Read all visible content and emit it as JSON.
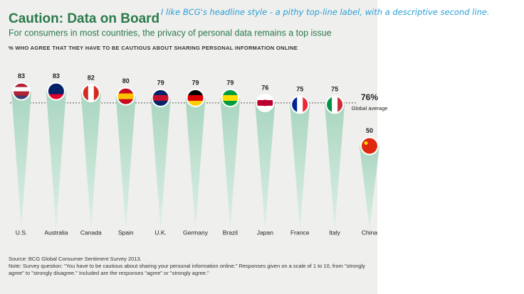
{
  "chart_data": {
    "type": "cone",
    "title": "Caution: Data on Board",
    "subtitle": "For consumers in most countries, the privacy of personal data remains a top issue",
    "y_label": "% WHO AGREE THAT THEY HAVE TO BE CAUTIOUS ABOUT SHARING PERSONAL INFORMATION ONLINE",
    "annotation": "I like BCG's headline style - a pithy top-line label, with a descriptive second line.",
    "categories": [
      "U.S.",
      "Australia",
      "Canada",
      "Spain",
      "U.K.",
      "Germany",
      "Brazil",
      "Japan",
      "France",
      "Italy",
      "China"
    ],
    "values": [
      83,
      83,
      82,
      80,
      79,
      79,
      79,
      76,
      75,
      75,
      50
    ],
    "color": "#bfe0d0",
    "reference": {
      "value": 76,
      "label": "76%",
      "text": "Global average"
    },
    "source": "Source: BCG Global Consumer Sentiment Survey 2013.",
    "note": "Note: Survey question: \"You have to be cautious about sharing your personal information online.\" Responses given on a scale of 1 to 10, from \"strongly agree\" to \"strongly disagree.\" Included are the responses \"agree\" or \"strongly agree.\""
  }
}
